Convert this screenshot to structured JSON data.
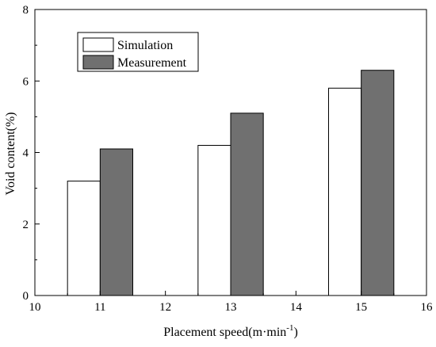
{
  "chart_data": {
    "type": "bar",
    "title": "",
    "xlabel": "Placement speed(m·min",
    "xlabel_superscript": "-1",
    "xlabel_close": ")",
    "ylabel": "Void content(%)",
    "xlim": [
      10,
      16
    ],
    "ylim": [
      0,
      8
    ],
    "xticks": [
      "10",
      "11",
      "12",
      "13",
      "14",
      "15",
      "16"
    ],
    "yticks": [
      "0",
      "2",
      "4",
      "6",
      "8"
    ],
    "x": [
      11,
      13,
      15
    ],
    "series": [
      {
        "name": "Simulation",
        "values": [
          3.2,
          4.2,
          5.8
        ],
        "color": "#ffffff"
      },
      {
        "name": "Measurement",
        "values": [
          4.1,
          5.1,
          6.3
        ],
        "color": "#707070"
      }
    ],
    "legend_position": "top-left",
    "grid": false
  }
}
